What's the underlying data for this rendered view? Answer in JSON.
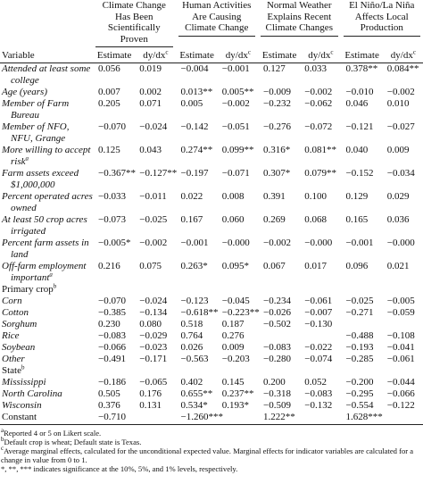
{
  "table": {
    "groups": [
      "Climate Change Has Been Scientifically Proven",
      "Human Activities Are Causing Climate Change",
      "Normal Weather Explains Recent Climate Changes",
      "El Niño/La Niña Affects Local Production"
    ],
    "columns": [
      {
        "label": "Variable"
      },
      {
        "label": "Estimate"
      },
      {
        "label": "dy/dx",
        "note": "c"
      },
      {
        "label": "Estimate"
      },
      {
        "label": "dy/dx",
        "note": "c"
      },
      {
        "label": "Estimate"
      },
      {
        "label": "dy/dx",
        "note": "c"
      },
      {
        "label": "Estimate"
      },
      {
        "label": "dy/dx",
        "note": "c"
      }
    ],
    "rows": [
      {
        "label": "Attended at least some college",
        "cells": [
          "0.056",
          "0.019",
          "−0.004",
          "−0.001",
          "0.127",
          "0.033",
          "0.378**",
          "0.084**"
        ]
      },
      {
        "label": "Age (years)",
        "cells": [
          "0.007",
          "0.002",
          "0.013**",
          "0.005**",
          "−0.009",
          "−0.002",
          "−0.010",
          "−0.002"
        ]
      },
      {
        "label": "Member of Farm Bureau",
        "cells": [
          "0.205",
          "0.071",
          "0.005",
          "−0.002",
          "−0.232",
          "−0.062",
          "0.046",
          "0.010"
        ]
      },
      {
        "label": "Member of NFO, NFU, Grange",
        "cells": [
          "−0.070",
          "−0.024",
          "−0.142",
          "−0.051",
          "−0.276",
          "−0.072",
          "−0.121",
          "−0.027"
        ]
      },
      {
        "label": "More willing to accept risk",
        "note": "a",
        "cells": [
          "0.125",
          "0.043",
          "0.274**",
          "0.099**",
          "0.316*",
          "0.081**",
          "0.040",
          "0.009"
        ]
      },
      {
        "label": "Farm assets exceed $1,000,000",
        "cells": [
          "−0.367**",
          "−0.127**",
          "−0.197",
          "−0.071",
          "0.307*",
          "0.079**",
          "−0.152",
          "−0.034"
        ]
      },
      {
        "label": "Percent operated acres owned",
        "cells": [
          "−0.033",
          "−0.011",
          "0.022",
          "0.008",
          "0.391",
          "0.100",
          "0.129",
          "0.029"
        ]
      },
      {
        "label": "At least 50 crop acres irrigated",
        "cells": [
          "−0.073",
          "−0.025",
          "0.167",
          "0.060",
          "0.269",
          "0.068",
          "0.165",
          "0.036"
        ]
      },
      {
        "label": "Percent farm assets in land",
        "cells": [
          "−0.005*",
          "−0.002",
          "−0.001",
          "−0.000",
          "−0.002",
          "−0.000",
          "−0.001",
          "−0.000"
        ]
      },
      {
        "label": "Off-farm employment important",
        "note": "a",
        "cells": [
          "0.216",
          "0.075",
          "0.263*",
          "0.095*",
          "0.067",
          "0.017",
          "0.096",
          "0.021"
        ]
      },
      {
        "section": "Primary crop",
        "note": "b"
      },
      {
        "label": "Corn",
        "cells": [
          "−0.070",
          "−0.024",
          "−0.123",
          "−0.045",
          "−0.234",
          "−0.061",
          "−0.025",
          "−0.005"
        ]
      },
      {
        "label": "Cotton",
        "cells": [
          "−0.385",
          "−0.134",
          "−0.618**",
          "−0.223**",
          "−0.026",
          "−0.007",
          "−0.271",
          "−0.059"
        ]
      },
      {
        "label": "Sorghum",
        "cells": [
          "0.230",
          "0.080",
          "0.518",
          "0.187",
          "−0.502",
          "−0.130",
          null,
          null
        ]
      },
      {
        "label": "Rice",
        "cells": [
          "−0.083",
          "−0.029",
          "0.764",
          "0.276",
          null,
          null,
          "−0.488",
          "−0.108"
        ]
      },
      {
        "label": "Soybean",
        "cells": [
          "−0.066",
          "−0.023",
          "0.026",
          "0.009",
          "−0.083",
          "−0.022",
          "−0.193",
          "−0.041"
        ]
      },
      {
        "label": "Other",
        "cells": [
          "−0.491",
          "−0.171",
          "−0.563",
          "−0.203",
          "−0.280",
          "−0.074",
          "−0.285",
          "−0.061"
        ]
      },
      {
        "section": "State",
        "note": "b"
      },
      {
        "label": "Mississippi",
        "cells": [
          "−0.186",
          "−0.065",
          "0.402",
          "0.145",
          "0.200",
          "0.052",
          "−0.200",
          "−0.044"
        ]
      },
      {
        "label": "North Carolina",
        "cells": [
          "0.505",
          "0.176",
          "0.655**",
          "0.237**",
          "−0.318",
          "−0.083",
          "−0.295",
          "−0.066"
        ]
      },
      {
        "label": "Wisconsin",
        "cells": [
          "0.376",
          "0.131",
          "0.534*",
          "0.193*",
          "−0.509",
          "−0.132",
          "−0.554",
          "−0.122"
        ]
      },
      {
        "label": "Constant",
        "plain": true,
        "cells": [
          "−0.710",
          null,
          "−1.260***",
          null,
          "1.222**",
          null,
          "1.628***",
          null
        ]
      }
    ],
    "footnotes": [
      {
        "mark": "a",
        "text": "Reported 4 or 5 on Likert scale."
      },
      {
        "mark": "b",
        "text": "Default crop is wheat; Default state is Texas."
      },
      {
        "mark": "c",
        "text": "Average marginal effects, calculated for the unconditional expected value. Marginal effects for indicator variables are calculated for a change in value from 0 to 1."
      },
      {
        "text": "*, **, *** indicates significance at the 10%, 5%, and 1% levels, respectively."
      }
    ]
  }
}
